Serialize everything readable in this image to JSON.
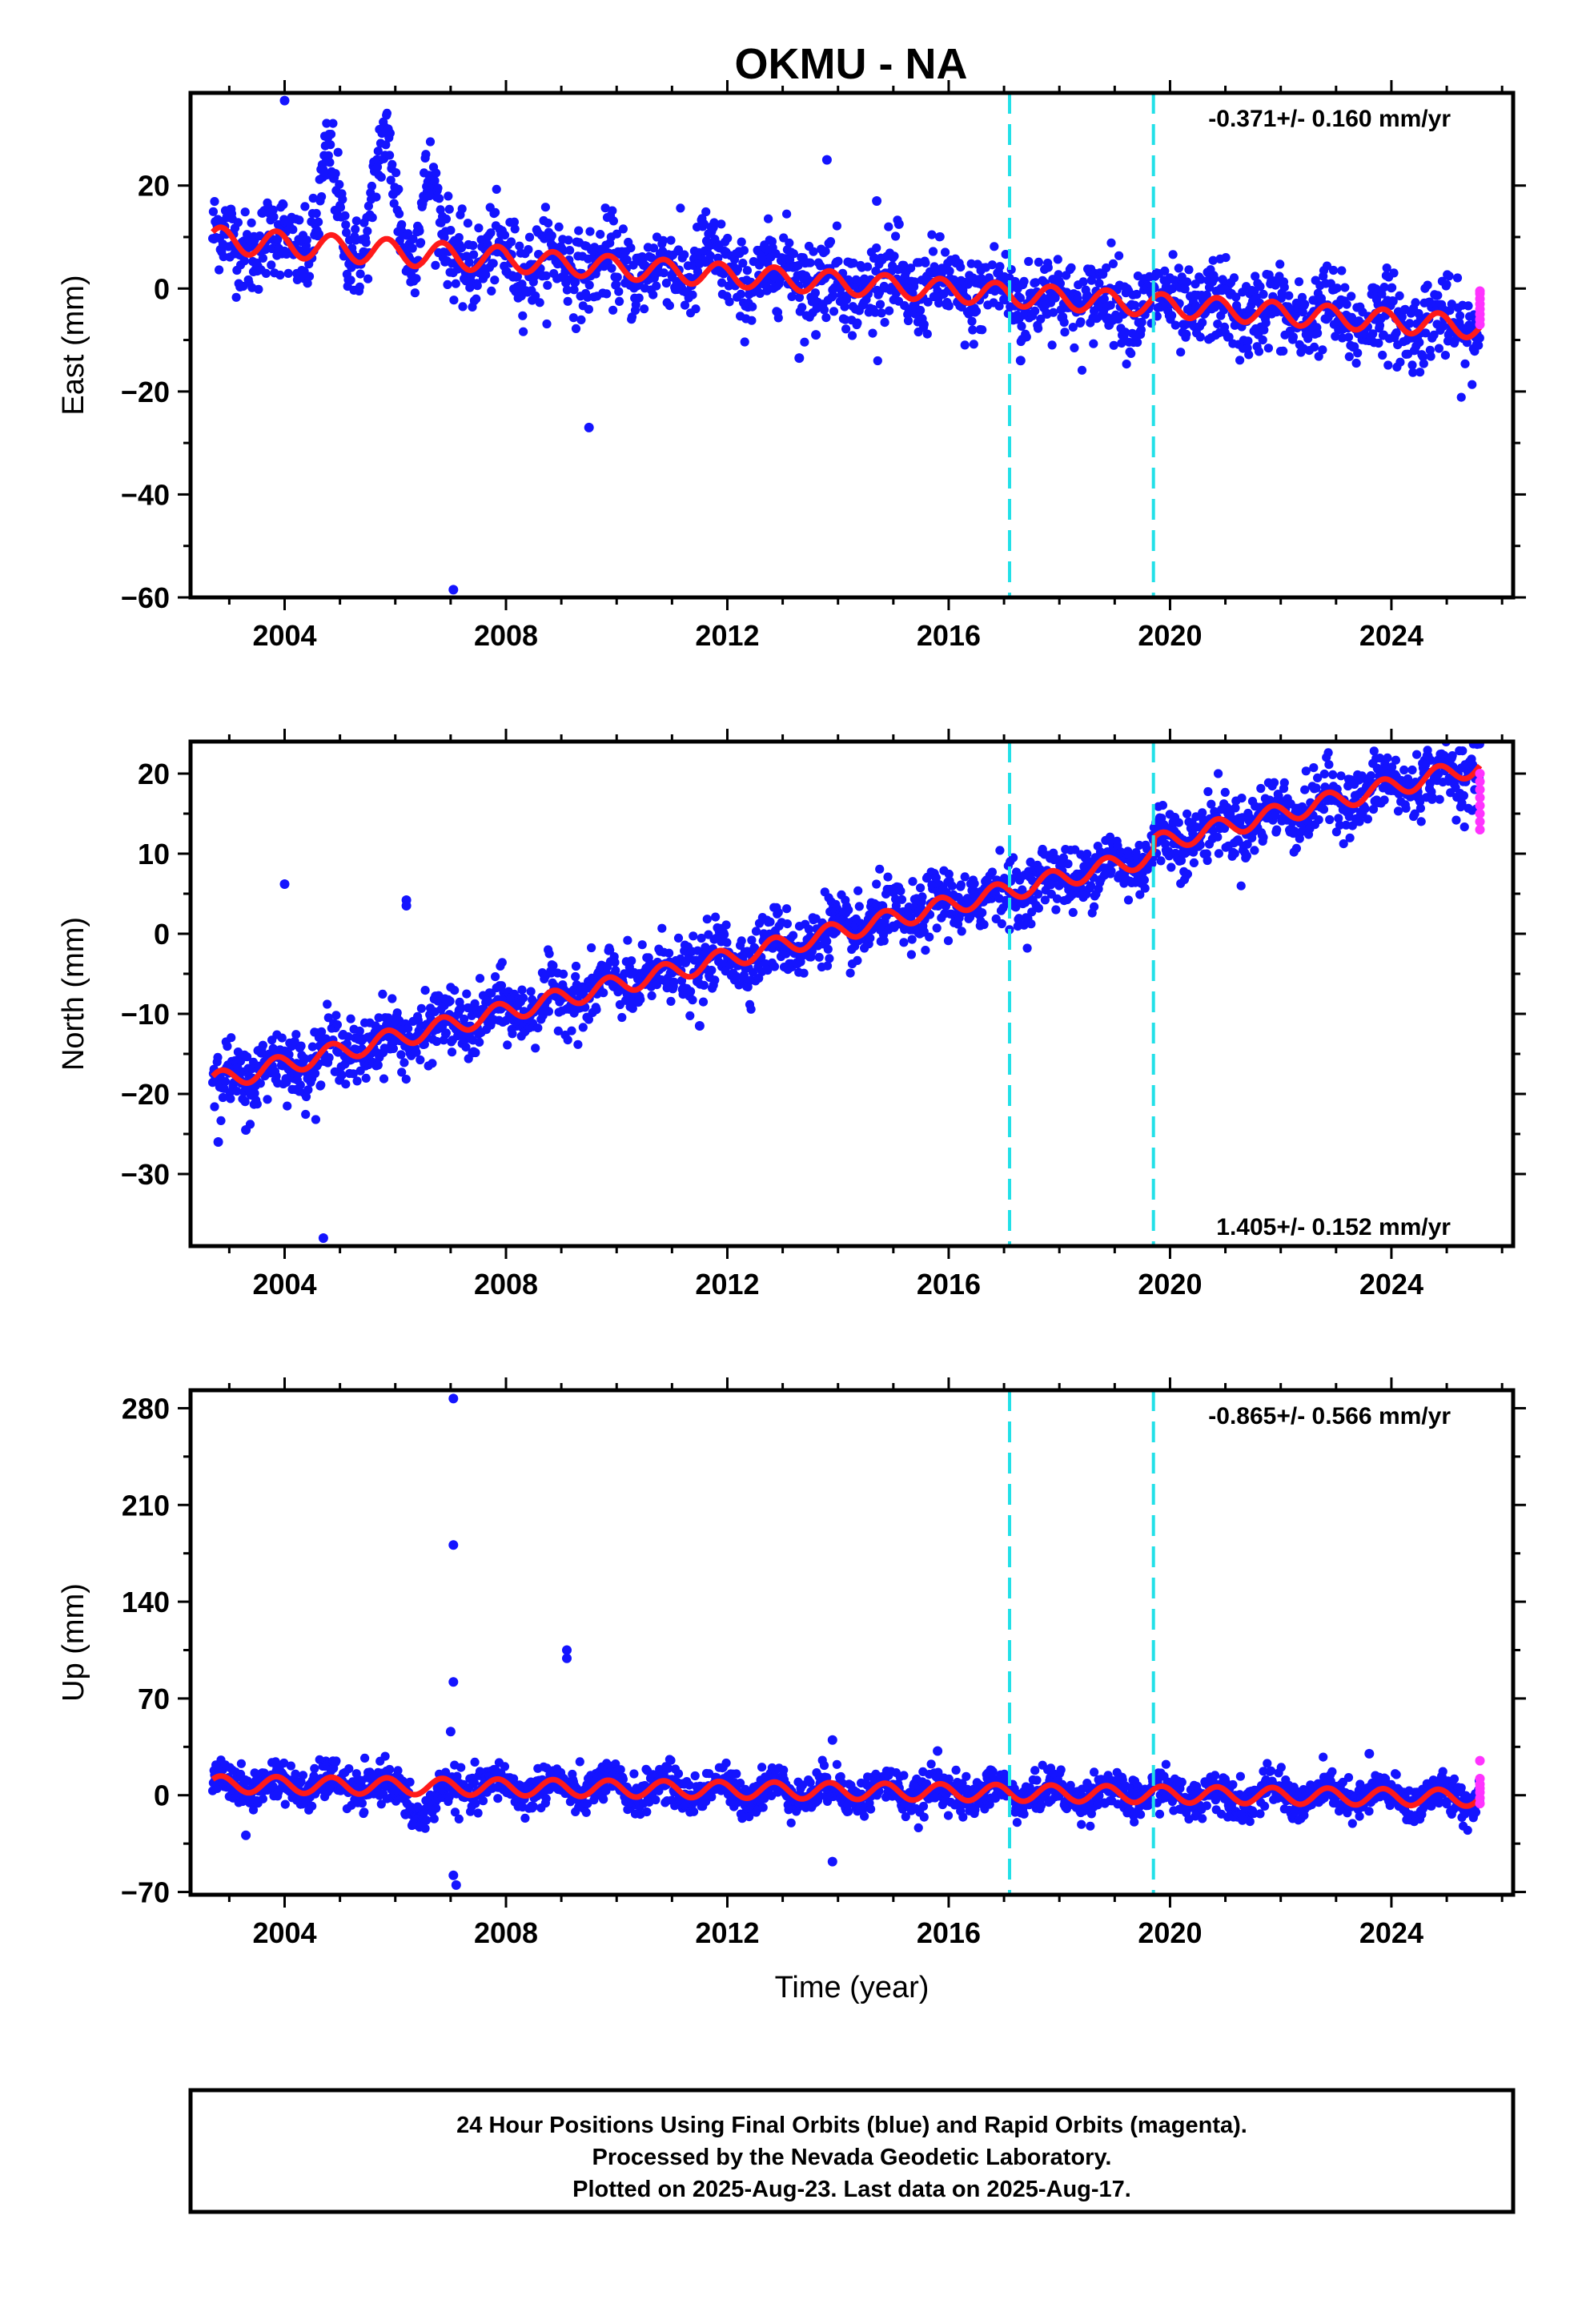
{
  "title": "OKMU - NA",
  "colors": {
    "final_orbits": "#1414ff",
    "rapid_orbits": "#ff33ff",
    "model": "#ff1a1a",
    "offset_lines": "#22e0e8"
  },
  "footer": {
    "line1": "24 Hour Positions Using Final Orbits (blue) and Rapid Orbits (magenta).",
    "line2": "Processed by the Nevada Geodetic Laboratory.",
    "line3": "Plotted on 2025-Aug-23. Last data on 2025-Aug-17."
  },
  "chart_data": [
    {
      "type": "scatter",
      "ylabel": "East (mm)",
      "xlabel": "",
      "rate_label": "-0.371+/- 0.160 mm/yr",
      "rate_position": "top-right",
      "xlim": [
        2002.3,
        2026.2
      ],
      "ylim": [
        -60,
        38
      ],
      "xticks": [
        2004,
        2008,
        2012,
        2016,
        2020,
        2024
      ],
      "yticks": [
        -60,
        -40,
        -20,
        0,
        20
      ],
      "offsets": [
        2017.1,
        2019.7
      ],
      "trend": {
        "start": 2002.7,
        "end": 2025.6,
        "value_start": 9.5,
        "value_end": -7.5
      },
      "seasonal": [
        {
          "start": 2002.7,
          "end": 2008.0,
          "amplitude": 2.5
        },
        {
          "start": 2008.0,
          "end": 2025.6,
          "amplitude": 2.2
        }
      ],
      "scatter": 4.0,
      "excursions": [
        {
          "center": 2004.8,
          "height": 16,
          "width": 0.2
        },
        {
          "center": 2005.8,
          "height": 20,
          "width": 0.25
        },
        {
          "center": 2006.6,
          "height": 15,
          "width": 0.2
        },
        {
          "center": 2011.6,
          "height": 6,
          "width": 0.15
        },
        {
          "center": 2013.2,
          "height": 4,
          "width": 0.2
        }
      ],
      "rapid_points": [
        -7,
        -6,
        -5,
        -4,
        -3,
        -2,
        -1,
        -0.5
      ],
      "rapid_x": 2025.6,
      "outliers": [
        {
          "x": 2004.0,
          "y": 36.5
        },
        {
          "x": 2007.05,
          "y": -58.5
        },
        {
          "x": 2009.5,
          "y": -27
        },
        {
          "x": 2013.8,
          "y": 25
        },
        {
          "x": 2014.7,
          "y": 17
        },
        {
          "x": 2015.1,
          "y": 12.5
        },
        {
          "x": 2013.3,
          "y": -13.5
        },
        {
          "x": 2013.6,
          "y": -9
        },
        {
          "x": 2017.3,
          "y": -14
        }
      ]
    },
    {
      "type": "scatter",
      "ylabel": "North (mm)",
      "xlabel": "",
      "rate_label": "1.405+/- 0.152 mm/yr",
      "rate_position": "bottom-right",
      "xlim": [
        2002.3,
        2026.2
      ],
      "ylim": [
        -39,
        24
      ],
      "xticks": [
        2004,
        2008,
        2012,
        2016,
        2020,
        2024
      ],
      "yticks": [
        -30,
        -20,
        -10,
        0,
        10,
        20
      ],
      "offsets": [
        2017.1,
        2019.7
      ],
      "trend": {
        "start": 2002.7,
        "end": 2025.6,
        "value_start": -18.5,
        "value_end": 19.5
      },
      "seasonal": [
        {
          "start": 2002.7,
          "end": 2025.6,
          "amplitude": 1.2
        }
      ],
      "step": {
        "at": 2019.7,
        "size": 1.5
      },
      "scatter": 2.0,
      "excursions": [],
      "rapid_points": [
        13,
        14,
        15,
        16,
        17,
        18,
        19,
        20
      ],
      "rapid_x": 2025.6,
      "outliers": [
        {
          "x": 2004.0,
          "y": 6.2
        },
        {
          "x": 2006.2,
          "y": 4.2
        },
        {
          "x": 2006.2,
          "y": 3.5
        },
        {
          "x": 2004.7,
          "y": -38
        },
        {
          "x": 2002.8,
          "y": -26
        },
        {
          "x": 2003.3,
          "y": -24.5
        },
        {
          "x": 2011.5,
          "y": -11.5
        }
      ]
    },
    {
      "type": "scatter",
      "ylabel": "Up (mm)",
      "xlabel": "Time (year)",
      "rate_label": "-0.865+/- 0.566 mm/yr",
      "rate_position": "top-right",
      "xlim": [
        2002.3,
        2026.2
      ],
      "ylim": [
        -72,
        293
      ],
      "xticks": [
        2004,
        2008,
        2012,
        2016,
        2020,
        2024
      ],
      "yticks": [
        -70,
        0,
        70,
        140,
        210,
        280
      ],
      "offsets": [
        2017.1,
        2019.7
      ],
      "trend": {
        "start": 2002.7,
        "end": 2025.6,
        "value_start": 8,
        "value_end": -2
      },
      "seasonal": [
        {
          "start": 2002.7,
          "end": 2025.6,
          "amplitude": 6
        }
      ],
      "scatter": 7.0,
      "excursions": [
        {
          "center": 2006.5,
          "height": -18,
          "width": 0.35
        }
      ],
      "rapid_points": [
        -6,
        -2,
        2,
        5,
        8,
        12,
        25
      ],
      "rapid_x": 2025.6,
      "outliers": [
        {
          "x": 2007.05,
          "y": 287
        },
        {
          "x": 2007.05,
          "y": 181
        },
        {
          "x": 2007.05,
          "y": 82
        },
        {
          "x": 2007.0,
          "y": 46
        },
        {
          "x": 2009.1,
          "y": 105
        },
        {
          "x": 2009.1,
          "y": 99
        },
        {
          "x": 2007.05,
          "y": -58
        },
        {
          "x": 2007.1,
          "y": -65
        },
        {
          "x": 2013.9,
          "y": -48
        },
        {
          "x": 2013.9,
          "y": 40
        },
        {
          "x": 2003.3,
          "y": -29
        },
        {
          "x": 2015.8,
          "y": 32
        },
        {
          "x": 2023.6,
          "y": 30
        }
      ]
    }
  ]
}
